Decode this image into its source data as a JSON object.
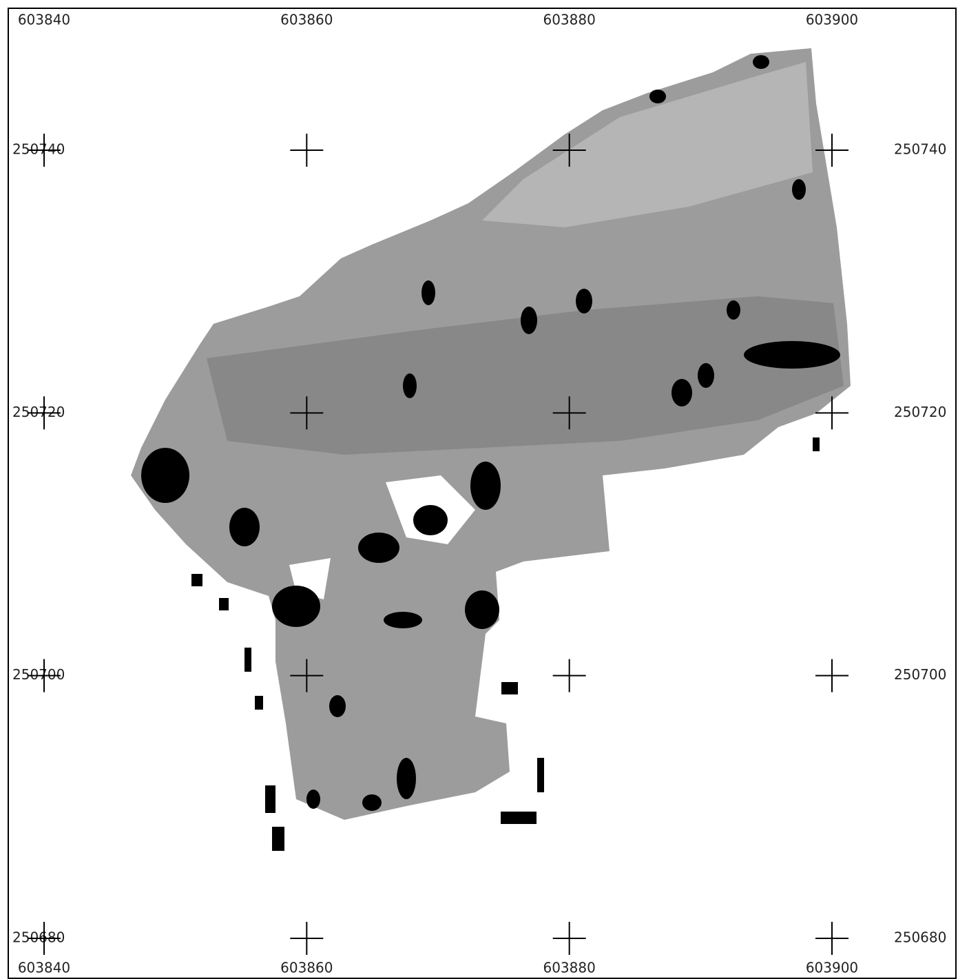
{
  "map": {
    "xticks": [
      603840,
      603860,
      603880,
      603900
    ],
    "yticks": [
      250740,
      250720,
      250700,
      250680
    ]
  }
}
